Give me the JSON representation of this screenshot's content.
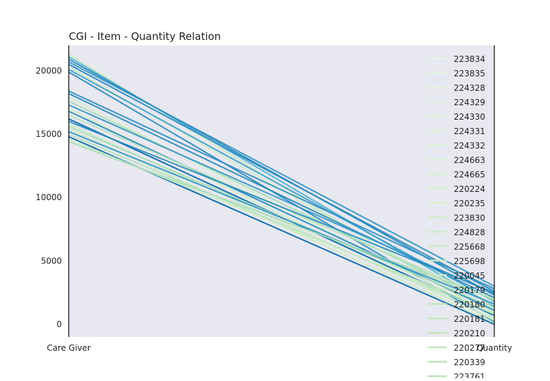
{
  "chart_data": {
    "type": "parallel_coordinates",
    "title": "CGI - Item - Quantity Relation",
    "axes": [
      "Care Giver",
      "Quantity"
    ],
    "ylim": [
      -1000,
      22000
    ],
    "yticks": [
      0,
      5000,
      10000,
      15000,
      20000
    ],
    "ytick_labels": [
      "0",
      "5000",
      "10000",
      "15000",
      "20000"
    ],
    "background": "#e8e8f0",
    "colormap": "GnBu",
    "legend_position": "right",
    "legend": [
      {
        "label": "223834",
        "color": "#e6f5e1"
      },
      {
        "label": "223835",
        "color": "#e5f5e0"
      },
      {
        "label": "224328",
        "color": "#e3f4de"
      },
      {
        "label": "224329",
        "color": "#e1f3dc"
      },
      {
        "label": "224330",
        "color": "#dff3da"
      },
      {
        "label": "224331",
        "color": "#ddf2d8"
      },
      {
        "label": "224332",
        "color": "#dbf1d6"
      },
      {
        "label": "224663",
        "color": "#d9f0d3"
      },
      {
        "label": "224665",
        "color": "#d7efd1"
      },
      {
        "label": "220224",
        "color": "#d5efcf"
      },
      {
        "label": "220235",
        "color": "#d3eecd"
      },
      {
        "label": "223830",
        "color": "#d1edcb"
      },
      {
        "label": "224828",
        "color": "#cfecc9"
      },
      {
        "label": "225668",
        "color": "#cdebc6"
      },
      {
        "label": "225698",
        "color": "#cbeac4"
      },
      {
        "label": "220045",
        "color": "#c9e9c2"
      },
      {
        "label": "220179",
        "color": "#c7e8c0"
      },
      {
        "label": "220180",
        "color": "#c5e8be"
      },
      {
        "label": "220181",
        "color": "#c3e7bc"
      },
      {
        "label": "220210",
        "color": "#c1e6ba"
      },
      {
        "label": "220277",
        "color": "#bfe5b9"
      },
      {
        "label": "220339",
        "color": "#bde5b8"
      },
      {
        "label": "223761",
        "color": "#bbe4b7"
      }
    ],
    "series": [
      {
        "x": [
          21300,
          500
        ],
        "color": "#c8e9c3"
      },
      {
        "x": [
          21100,
          1400
        ],
        "color": "#4fb3d4"
      },
      {
        "x": [
          20900,
          2300
        ],
        "color": "#2b8cbe"
      },
      {
        "x": [
          20700,
          3000
        ],
        "color": "#3495c6"
      },
      {
        "x": [
          20500,
          2600
        ],
        "color": "#2a8ac0"
      },
      {
        "x": [
          20300,
          900
        ],
        "color": "#ccebc5"
      },
      {
        "x": [
          20100,
          1800
        ],
        "color": "#3e9fcb"
      },
      {
        "x": [
          19900,
          200
        ],
        "color": "#2b8cbe"
      },
      {
        "x": [
          18400,
          2800
        ],
        "color": "#2f8fc2"
      },
      {
        "x": [
          18200,
          2100
        ],
        "color": "#2b8cbe"
      },
      {
        "x": [
          17900,
          600
        ],
        "color": "#d5efcf"
      },
      {
        "x": [
          17600,
          1500
        ],
        "color": "#a8ddb5"
      },
      {
        "x": [
          17300,
          2400
        ],
        "color": "#3696c6"
      },
      {
        "x": [
          17000,
          300
        ],
        "color": "#ccebc5"
      },
      {
        "x": [
          16800,
          1100
        ],
        "color": "#2b8cbe"
      },
      {
        "x": [
          16500,
          1900
        ],
        "color": "#b5e2bd"
      },
      {
        "x": [
          16200,
          700
        ],
        "color": "#0868ac"
      },
      {
        "x": [
          16000,
          2500
        ],
        "color": "#2b8cbe"
      },
      {
        "x": [
          15800,
          400
        ],
        "color": "#c8e9c3"
      },
      {
        "x": [
          15600,
          1300
        ],
        "color": "#a8ddb5"
      },
      {
        "x": [
          15400,
          100
        ],
        "color": "#ccebc5"
      },
      {
        "x": [
          15200,
          1600
        ],
        "color": "#3495c6"
      },
      {
        "x": [
          15000,
          800
        ],
        "color": "#b5e2bd"
      },
      {
        "x": [
          14800,
          0
        ],
        "color": "#0868ac"
      },
      {
        "x": [
          14600,
          1000
        ],
        "color": "#ccebc5"
      },
      {
        "x": [
          14400,
          2000
        ],
        "color": "#a8ddb5"
      }
    ]
  }
}
